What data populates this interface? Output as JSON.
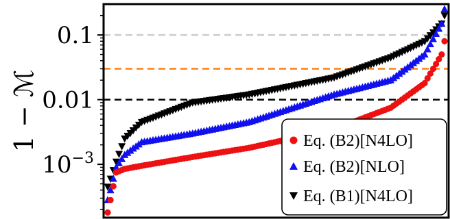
{
  "chart_data": {
    "type": "scatter",
    "ylabel": "1 − ℳ",
    "y_scale": "log",
    "ylim": [
      0.00015,
      0.3
    ],
    "yticks": [
      {
        "value": 0.1,
        "label": "0.1"
      },
      {
        "value": 0.01,
        "label": "0.01"
      },
      {
        "value": 0.001,
        "label": "10",
        "exponent": "−3"
      }
    ],
    "reference_lines": [
      {
        "y": 0.1,
        "color": "#cccccc",
        "style": "dashed"
      },
      {
        "y": 0.03,
        "color": "#ff7f0e",
        "style": "dashed"
      },
      {
        "y": 0.01,
        "color": "#000000",
        "style": "dashed"
      }
    ],
    "x_count": 120,
    "legend": {
      "placement": "bottom-right"
    },
    "series": [
      {
        "name": "Eq. (B2)[N4LO]",
        "marker": "circle",
        "color": "#ee1111",
        "anchors": [
          [
            0,
            0.00018
          ],
          [
            1,
            0.00028
          ],
          [
            3,
            0.00075
          ],
          [
            6,
            0.00085
          ],
          [
            12,
            0.00095
          ],
          [
            30,
            0.0013
          ],
          [
            50,
            0.0018
          ],
          [
            80,
            0.0035
          ],
          [
            100,
            0.0075
          ],
          [
            112,
            0.018
          ],
          [
            118,
            0.05
          ],
          [
            119,
            0.08
          ]
        ]
      },
      {
        "name": "Eq. (B2)[NLO]",
        "marker": "triangle-up",
        "color": "#1111ee",
        "anchors": [
          [
            0,
            0.00028
          ],
          [
            1,
            0.0004
          ],
          [
            3,
            0.0009
          ],
          [
            6,
            0.0014
          ],
          [
            12,
            0.0022
          ],
          [
            30,
            0.003
          ],
          [
            50,
            0.0045
          ],
          [
            80,
            0.012
          ],
          [
            100,
            0.02
          ],
          [
            112,
            0.05
          ],
          [
            118,
            0.15
          ],
          [
            119,
            0.25
          ]
        ]
      },
      {
        "name": "Eq. (B1)[N4LO]",
        "marker": "triangle-down",
        "color": "#000000",
        "anchors": [
          [
            0,
            0.00045
          ],
          [
            1,
            0.0006
          ],
          [
            3,
            0.0011
          ],
          [
            6,
            0.0025
          ],
          [
            12,
            0.0045
          ],
          [
            30,
            0.009
          ],
          [
            50,
            0.012
          ],
          [
            80,
            0.022
          ],
          [
            100,
            0.045
          ],
          [
            112,
            0.08
          ],
          [
            118,
            0.15
          ],
          [
            119,
            0.2
          ]
        ]
      }
    ]
  }
}
